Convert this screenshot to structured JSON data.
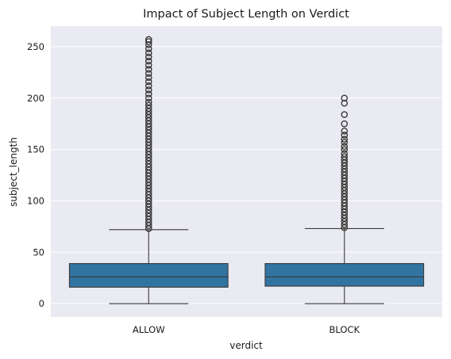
{
  "chart_data": {
    "type": "box",
    "title": "Impact of Subject Length on Verdict",
    "xlabel": "verdict",
    "ylabel": "subject_length",
    "categories": [
      "ALLOW",
      "BLOCK"
    ],
    "ylim": [
      -13,
      270
    ],
    "yticks": [
      0,
      50,
      100,
      150,
      200,
      250
    ],
    "grid": true,
    "style": {
      "background": "#eaeaf2",
      "grid_color": "#ffffff",
      "box_fill": "#3274a1",
      "line_color": "#3a3a3a"
    },
    "boxes": [
      {
        "category": "ALLOW",
        "min": 0,
        "q1": 16,
        "median": 26,
        "q3": 39,
        "whisker_high": 72,
        "outliers": [
          73,
          76,
          79,
          82,
          85,
          88,
          91,
          94,
          97,
          100,
          103,
          106,
          109,
          112,
          115,
          118,
          121,
          124,
          127,
          130,
          133,
          136,
          139,
          142,
          145,
          148,
          151,
          154,
          157,
          160,
          163,
          166,
          169,
          172,
          175,
          178,
          181,
          184,
          187,
          190,
          193,
          196,
          200,
          204,
          208,
          212,
          216,
          220,
          224,
          228,
          232,
          236,
          240,
          244,
          248,
          252,
          255,
          257
        ]
      },
      {
        "category": "BLOCK",
        "min": 0,
        "q1": 17,
        "median": 26,
        "q3": 39,
        "whisker_high": 73,
        "outliers": [
          74,
          77,
          80,
          83,
          86,
          89,
          92,
          95,
          98,
          101,
          104,
          107,
          110,
          113,
          116,
          119,
          122,
          125,
          128,
          131,
          134,
          137,
          140,
          143,
          146,
          150,
          153,
          157,
          160,
          164,
          168,
          175,
          184,
          195,
          200
        ]
      }
    ]
  }
}
